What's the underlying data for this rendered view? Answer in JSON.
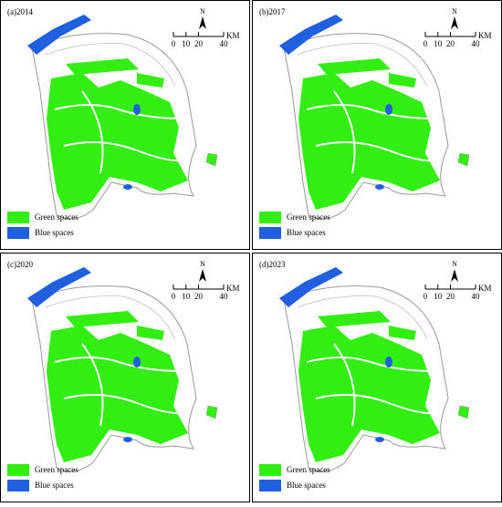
{
  "panels": [
    {
      "label": "(a)2014"
    },
    {
      "label": "(b)2017"
    },
    {
      "label": "(c)2020"
    },
    {
      "label": "(d)2023"
    }
  ],
  "legend": {
    "items": [
      {
        "label": "Green spaces",
        "color": "#33ee11"
      },
      {
        "label": "Blue spaces",
        "color": "#1f5fe0"
      }
    ]
  },
  "north": "N",
  "scale_bar": {
    "ticks": [
      0,
      10,
      20,
      40
    ],
    "unit": "KM"
  }
}
